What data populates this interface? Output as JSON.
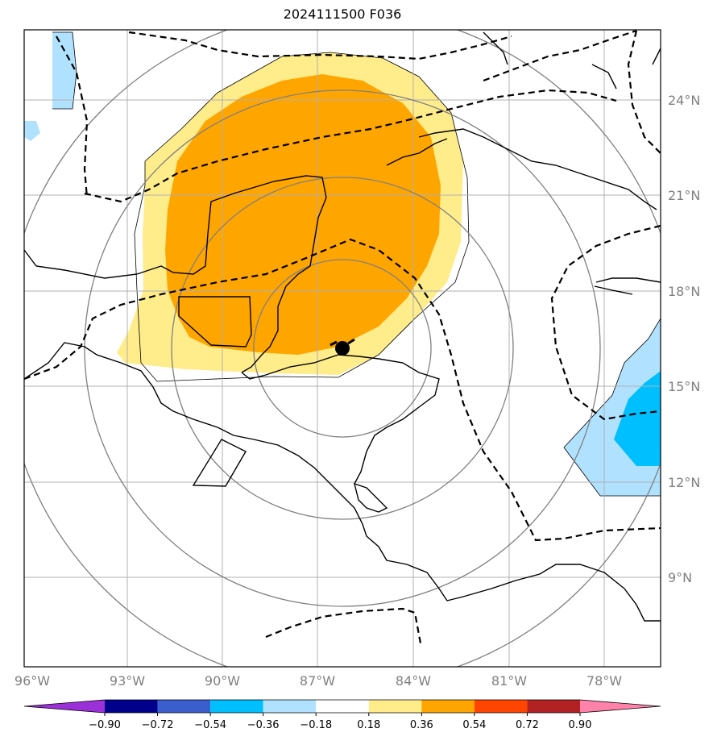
{
  "title": "2024111500 F036",
  "map": {
    "lon_labels": [
      "96°W",
      "93°W",
      "90°W",
      "87°W",
      "84°W",
      "81°W",
      "78°W"
    ],
    "lat_labels": [
      "24°N",
      "21°N",
      "18°N",
      "15°N",
      "12°N",
      "9°N"
    ]
  },
  "colorbar": {
    "ticks": [
      "−0.90",
      "−0.72",
      "−0.54",
      "−0.36",
      "−0.18",
      "0.18",
      "0.36",
      "0.54",
      "0.72",
      "0.90"
    ],
    "colors": [
      "#9b30d9",
      "#00008b",
      "#3a5fcd",
      "#00bfff",
      "#b0e2ff",
      "#ffffff",
      "#ffec8b",
      "#ffa500",
      "#ff4500",
      "#b22222",
      "#ff82ab"
    ]
  },
  "colors": {
    "light_yellow": "#ffec8b",
    "orange": "#ffa500",
    "light_blue": "#b0e2ff",
    "deep_sky_blue": "#00bfff"
  }
}
